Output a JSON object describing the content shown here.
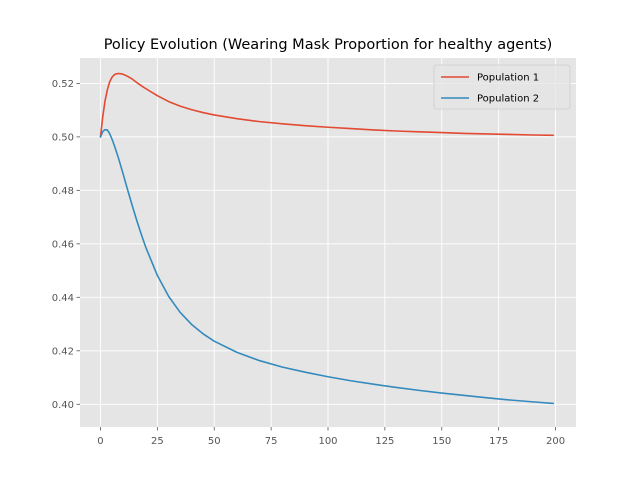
{
  "chart_data": {
    "type": "line",
    "title": "Policy Evolution (Wearing Mask Proportion for healthy agents)",
    "xlabel": "",
    "ylabel": "",
    "xlim": [
      -9,
      209
    ],
    "ylim": [
      0.3915,
      0.5295
    ],
    "xticks": [
      0,
      25,
      50,
      75,
      100,
      125,
      150,
      175,
      200
    ],
    "yticks": [
      0.4,
      0.42,
      0.44,
      0.46,
      0.48,
      0.5,
      0.52
    ],
    "ytick_labels": [
      "0.40",
      "0.42",
      "0.44",
      "0.46",
      "0.48",
      "0.50",
      "0.52"
    ],
    "grid": true,
    "legend_position": "top-right",
    "background": "#e5e5e5",
    "series": [
      {
        "name": "Population 1",
        "color": "#e24a33",
        "x": [
          0,
          1,
          2,
          3,
          4,
          5,
          6,
          7,
          8,
          9,
          10,
          12,
          14,
          16,
          18,
          20,
          25,
          30,
          35,
          40,
          45,
          50,
          60,
          70,
          80,
          90,
          100,
          110,
          120,
          130,
          140,
          150,
          160,
          170,
          180,
          190,
          199
        ],
        "y": [
          0.5,
          0.5075,
          0.5135,
          0.5175,
          0.5205,
          0.5222,
          0.5232,
          0.5236,
          0.5237,
          0.5236,
          0.5234,
          0.5226,
          0.5216,
          0.5203,
          0.5191,
          0.518,
          0.5154,
          0.5132,
          0.5115,
          0.5102,
          0.5091,
          0.5082,
          0.5068,
          0.5057,
          0.5049,
          0.5042,
          0.5036,
          0.5031,
          0.5026,
          0.5022,
          0.5019,
          0.5016,
          0.5013,
          0.5011,
          0.5009,
          0.5007,
          0.5006
        ]
      },
      {
        "name": "Population 2",
        "color": "#348abd",
        "x": [
          0,
          1,
          2,
          3,
          4,
          5,
          6,
          7,
          8,
          10,
          12,
          14,
          16,
          18,
          20,
          25,
          30,
          35,
          40,
          45,
          50,
          60,
          70,
          80,
          90,
          100,
          110,
          120,
          130,
          140,
          150,
          160,
          170,
          180,
          190,
          199
        ],
        "y": [
          0.5,
          0.502,
          0.5027,
          0.5026,
          0.5013,
          0.4993,
          0.497,
          0.4945,
          0.4918,
          0.486,
          0.48,
          0.4742,
          0.4686,
          0.4634,
          0.4585,
          0.4482,
          0.4403,
          0.4344,
          0.4299,
          0.4264,
          0.4236,
          0.4194,
          0.4163,
          0.4139,
          0.412,
          0.4103,
          0.4088,
          0.4075,
          0.4063,
          0.4052,
          0.4042,
          0.4033,
          0.4024,
          0.4016,
          0.4009,
          0.4003
        ]
      }
    ]
  }
}
